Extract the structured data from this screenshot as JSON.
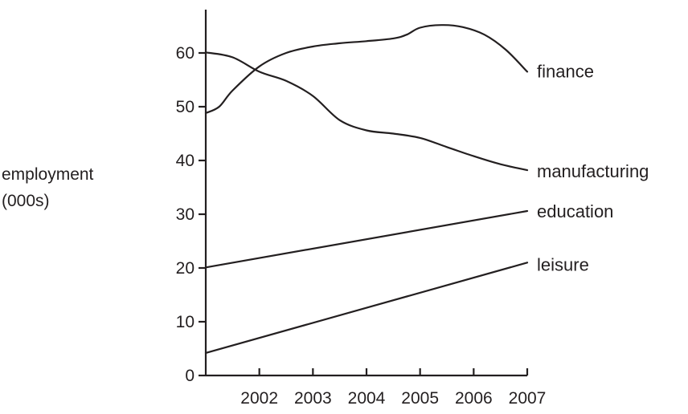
{
  "chart_data": {
    "type": "line",
    "title": "",
    "xlabel": "",
    "ylabel_lines": [
      "employment",
      "(000s)"
    ],
    "xlim": [
      2001,
      2007
    ],
    "ylim": [
      0,
      60
    ],
    "x_ticks": [
      2002,
      2003,
      2004,
      2005,
      2006,
      2007
    ],
    "y_ticks": [
      0,
      10,
      20,
      30,
      40,
      50,
      60
    ],
    "grid": false,
    "legend": "inline-right",
    "line_color": "#231f20",
    "series": [
      {
        "name": "finance",
        "x": [
          2001,
          2001.25,
          2001.5,
          2002,
          2002.5,
          2003,
          2003.5,
          2004,
          2004.5,
          2004.75,
          2005,
          2005.4,
          2005.8,
          2006.2,
          2006.6,
          2007
        ],
        "values": [
          48.8,
          50,
          53,
          57.5,
          60,
          61.2,
          61.8,
          62.2,
          62.7,
          63.4,
          64.7,
          65.2,
          64.8,
          63.4,
          60.6,
          56.5
        ]
      },
      {
        "name": "manufacturing",
        "x": [
          2001,
          2001.5,
          2002,
          2002.5,
          2003,
          2003.5,
          2004,
          2004.5,
          2005,
          2005.5,
          2006,
          2006.5,
          2007
        ],
        "values": [
          60.1,
          59.2,
          56.5,
          54.8,
          52,
          47.5,
          45.6,
          45.0,
          44.2,
          42.5,
          40.8,
          39.3,
          38.2
        ]
      },
      {
        "name": "education",
        "x": [
          2001,
          2007
        ],
        "values": [
          20.1,
          30.6
        ]
      },
      {
        "name": "leisure",
        "x": [
          2001,
          2007
        ],
        "values": [
          4.2,
          21.0
        ]
      }
    ]
  }
}
